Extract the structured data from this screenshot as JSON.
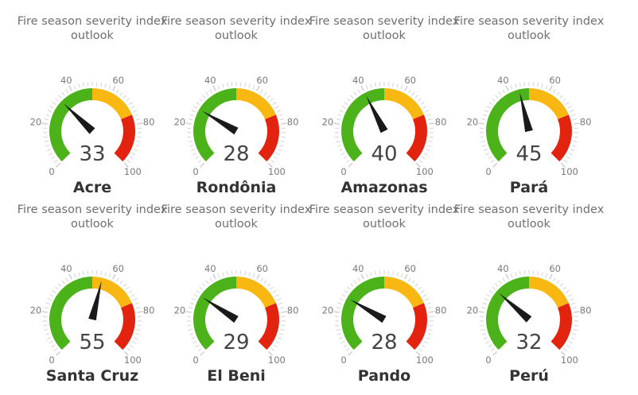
{
  "chart_data": {
    "type": "gauge",
    "scale": {
      "min": 0,
      "max": 100,
      "tick_labels": [
        "0",
        "20",
        "40",
        "60",
        "80",
        "100"
      ]
    },
    "bands": [
      {
        "from": 0,
        "to": 50,
        "color": "#4cb21a"
      },
      {
        "from": 50,
        "to": 75,
        "color": "#f9b811"
      },
      {
        "from": 75,
        "to": 100,
        "color": "#e1230f"
      }
    ],
    "needle_color": "#1a1a1a",
    "title": "Fire season severity index\noutlook",
    "gauges": [
      {
        "region": "Acre",
        "value": 33
      },
      {
        "region": "Rondônia",
        "value": 28
      },
      {
        "region": "Amazonas",
        "value": 40
      },
      {
        "region": "Pará",
        "value": 45
      },
      {
        "region": "Santa Cruz",
        "value": 55
      },
      {
        "region": "El Beni",
        "value": 29
      },
      {
        "region": "Pando",
        "value": 28
      },
      {
        "region": "Perú",
        "value": 32
      }
    ]
  }
}
